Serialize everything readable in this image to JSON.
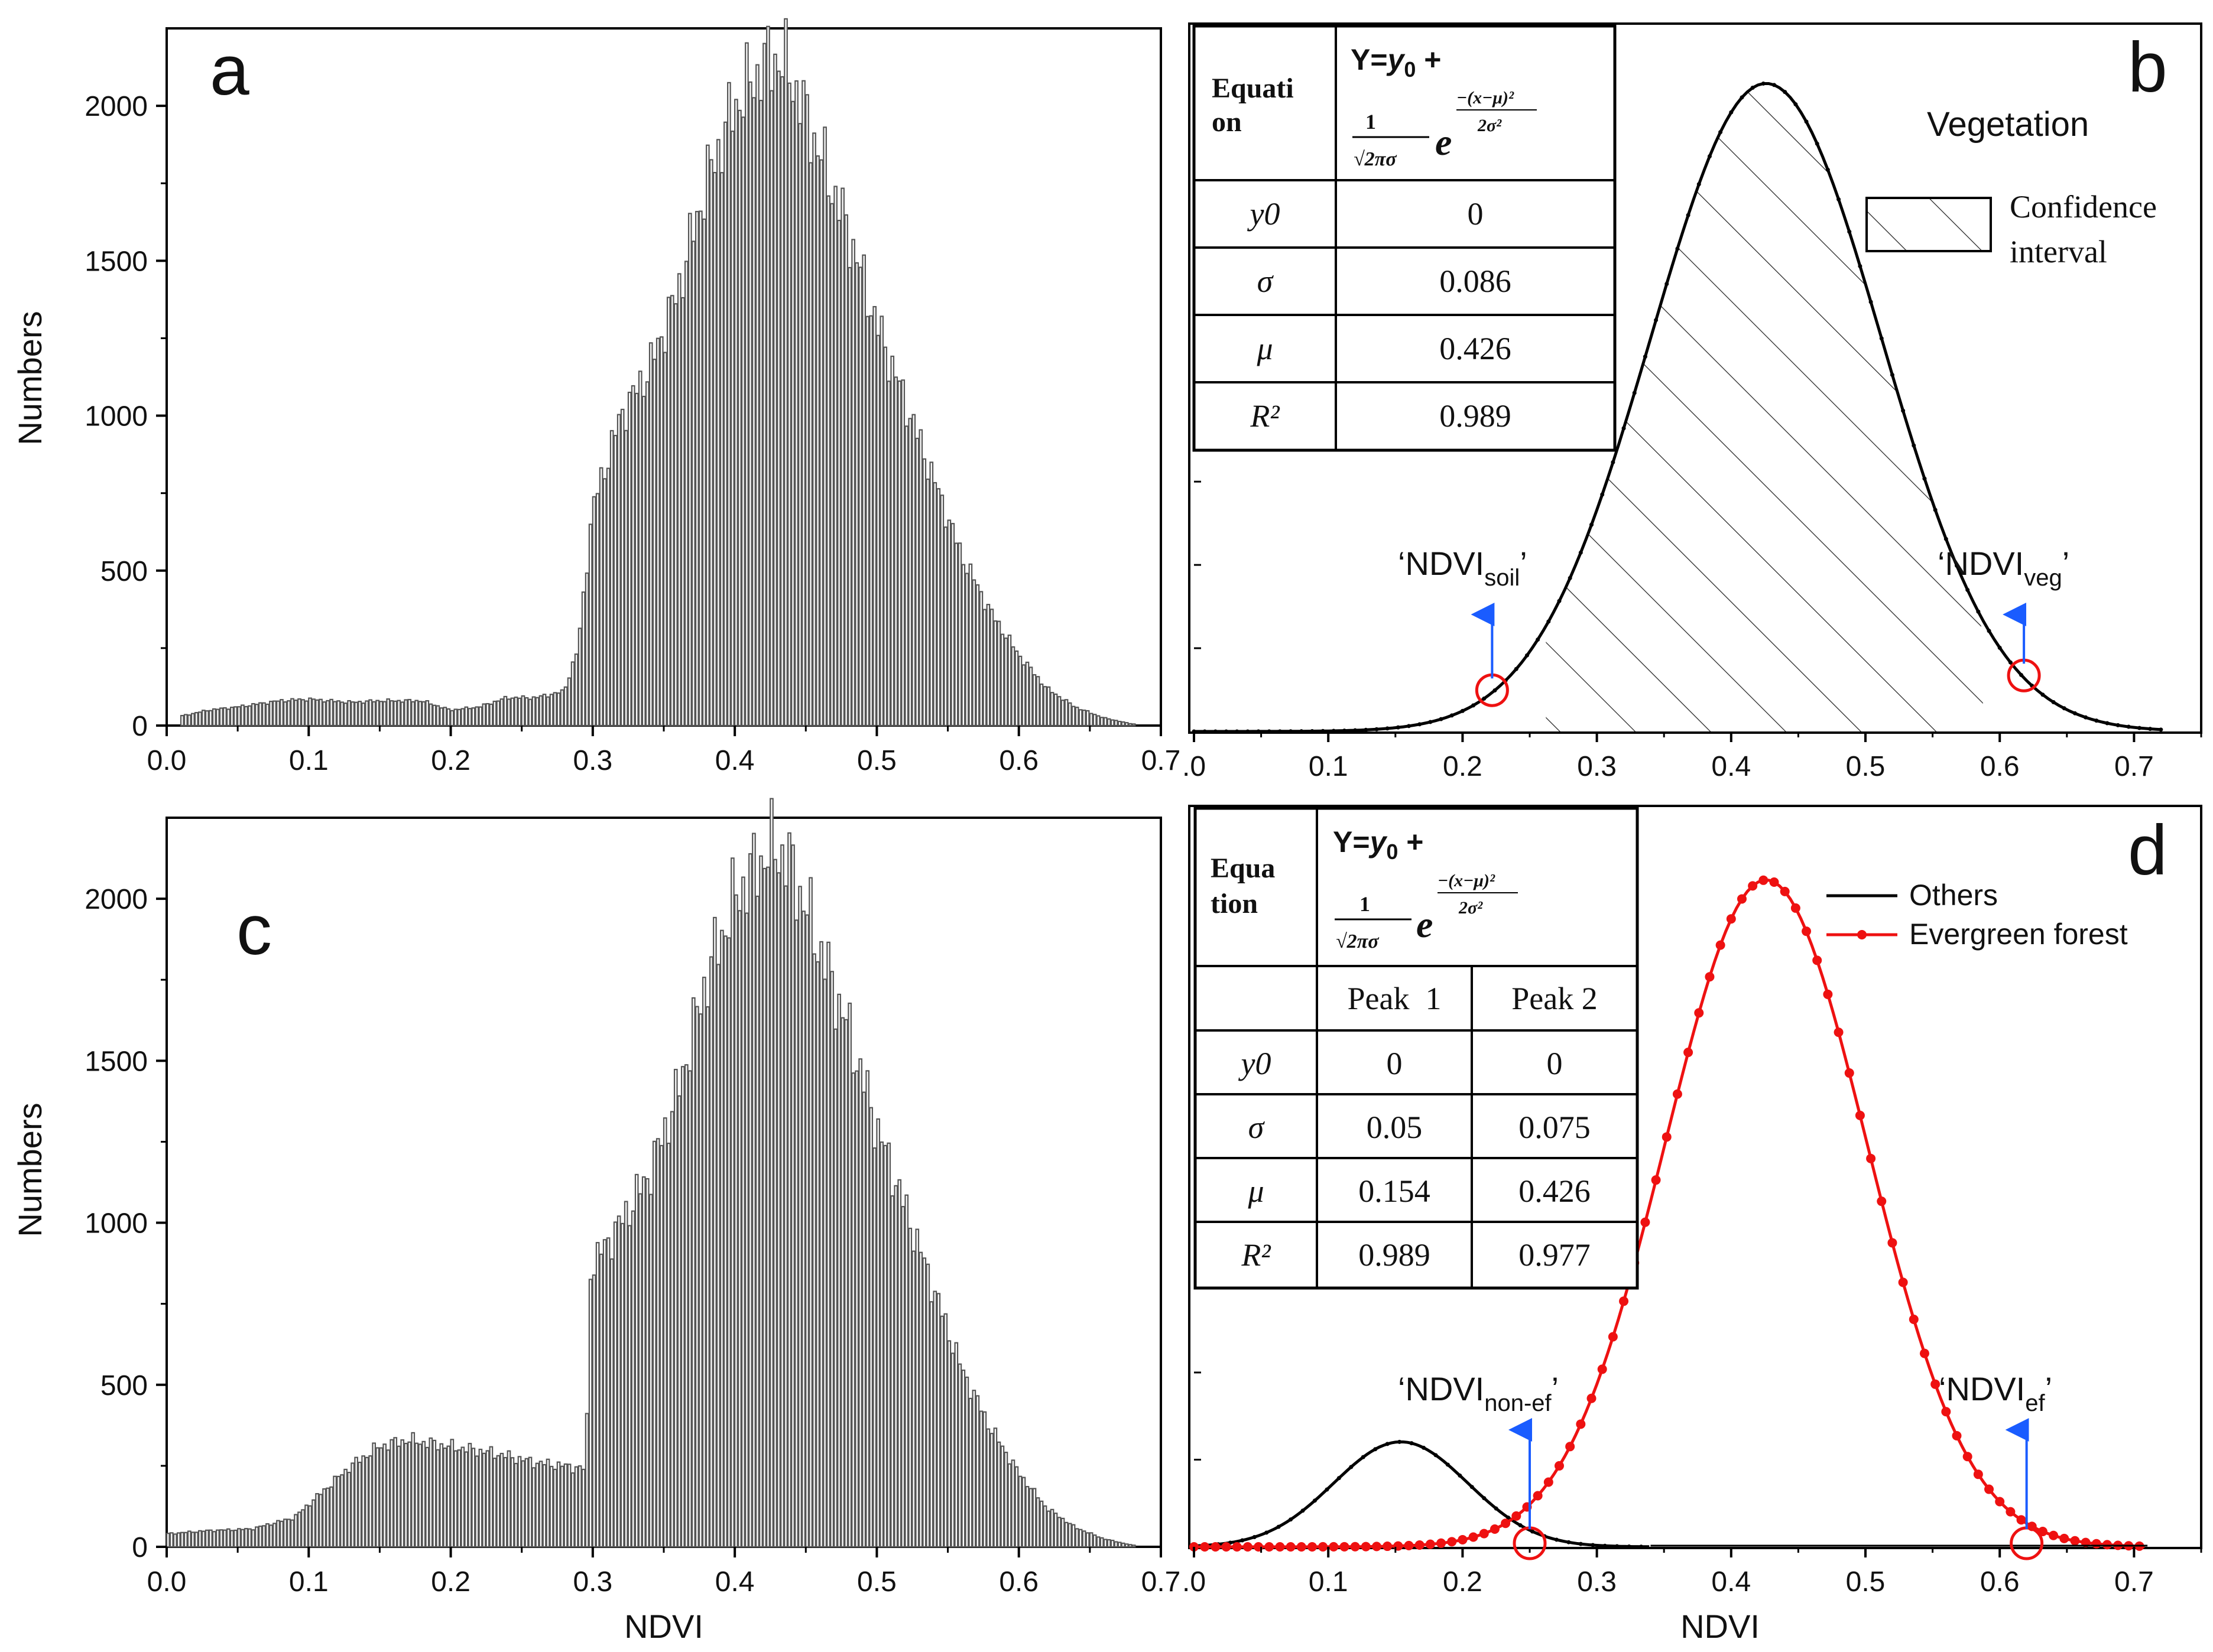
{
  "colors": {
    "axis": "#000000",
    "bar_fill": "#555555",
    "others": "#000000",
    "evergreen": "#ee1111",
    "arrow": "#1a5cff",
    "circle": "#ee1111"
  },
  "panels": {
    "a": {
      "letter": "a"
    },
    "b": {
      "letter": "b",
      "label_vegetation": "Vegetation",
      "legend_confidence_line1": "Confidence",
      "legend_confidence_line2": "interval",
      "annot_soil_main": "‘NDVI",
      "annot_soil_sub": "soil",
      "annot_soil_end": "’",
      "annot_veg_main": "‘NDVI",
      "annot_veg_sub": "veg",
      "annot_veg_end": "’",
      "table": {
        "equation_label": "Equation",
        "equation_text": "Y=y0 + (1/√(2π)σ)·e^(−(x−μ)²/2σ²)",
        "rows": [
          {
            "param": "y0",
            "value": "0"
          },
          {
            "param": "σ",
            "value": "0.086"
          },
          {
            "param": "μ",
            "value": "0.426"
          },
          {
            "param": "R²",
            "value": "0.989"
          }
        ]
      }
    },
    "c": {
      "letter": "c"
    },
    "d": {
      "letter": "d",
      "legend_others": "Others",
      "legend_evergreen": "Evergreen forest",
      "annot_nonef_main": "‘NDVI",
      "annot_nonef_sub": "non-ef",
      "annot_nonef_end": "’",
      "annot_ef_main": "‘NDVI",
      "annot_ef_sub": "ef",
      "annot_ef_end": "’",
      "table": {
        "equation_label": "Equation",
        "equation_text": "Y=y0 + (1/√(2π)σ)·e^(−(x−μ)²/2σ²)",
        "peak1_header": "Peak  1",
        "peak2_header": "Peak 2",
        "rows": [
          {
            "param": "y0",
            "v1": "0",
            "v2": "0"
          },
          {
            "param": "σ",
            "v1": "0.05",
            "v2": "0.075"
          },
          {
            "param": "μ",
            "v1": "0.154",
            "v2": "0.426"
          },
          {
            "param": "R²",
            "v1": "0.989",
            "v2": "0.977"
          }
        ]
      }
    }
  },
  "chart_data": [
    {
      "id": "a",
      "type": "bar",
      "title": "",
      "xlabel": "",
      "ylabel": "Numbers",
      "xlim": [
        0.0,
        0.7
      ],
      "ylim": [
        0,
        2250
      ],
      "xticks": [
        "0.0",
        "0.1",
        "0.2",
        "0.3",
        "0.4",
        "0.5",
        "0.6",
        "0.7"
      ],
      "yticks": [
        "0",
        "500",
        "1000",
        "1500",
        "2000"
      ],
      "bin_width": 0.0025,
      "histogram_profile": {
        "x": [
          0.01,
          0.03,
          0.05,
          0.08,
          0.1,
          0.13,
          0.15,
          0.18,
          0.2,
          0.22,
          0.24,
          0.26,
          0.28,
          0.29,
          0.3,
          0.32,
          0.34,
          0.36,
          0.38,
          0.4,
          0.42,
          0.43,
          0.44,
          0.46,
          0.48,
          0.5,
          0.52,
          0.54,
          0.56,
          0.58,
          0.6,
          0.62,
          0.64,
          0.66,
          0.68
        ],
        "values": [
          30,
          50,
          60,
          80,
          85,
          75,
          80,
          80,
          50,
          60,
          90,
          90,
          110,
          250,
          700,
          1000,
          1150,
          1400,
          1750,
          2000,
          2130,
          2160,
          2100,
          1850,
          1600,
          1300,
          1050,
          800,
          550,
          370,
          230,
          120,
          60,
          25,
          5
        ]
      }
    },
    {
      "id": "b",
      "type": "line",
      "title": "",
      "xlabel": "",
      "ylabel": "",
      "xlim": [
        0.0,
        0.75
      ],
      "ylim": [
        0,
        2250
      ],
      "xticks": [
        ".0",
        "0.1",
        "0.2",
        "0.3",
        "0.4",
        "0.5",
        "0.6",
        "0.7"
      ],
      "series": [
        {
          "name": "Vegetation",
          "model": "gaussian",
          "mu": 0.426,
          "sigma": 0.086,
          "peak": 2060,
          "x_range": [
            0.0,
            0.72
          ]
        }
      ],
      "confidence_interval": [
        0.222,
        0.618
      ],
      "markers": {
        "NDVIsoil": 0.222,
        "NDVIveg": 0.618
      }
    },
    {
      "id": "c",
      "type": "bar",
      "title": "",
      "xlabel": "NDVI",
      "ylabel": "Numbers",
      "xlim": [
        0.0,
        0.7
      ],
      "ylim": [
        0,
        2250
      ],
      "xticks": [
        "0.0",
        "0.1",
        "0.2",
        "0.3",
        "0.4",
        "0.5",
        "0.6",
        "0.7"
      ],
      "yticks": [
        "0",
        "500",
        "1000",
        "1500",
        "2000"
      ],
      "bin_width": 0.0025,
      "histogram_profile": {
        "x": [
          0.0,
          0.03,
          0.06,
          0.09,
          0.11,
          0.13,
          0.15,
          0.17,
          0.2,
          0.23,
          0.26,
          0.28,
          0.296,
          0.297,
          0.32,
          0.34,
          0.36,
          0.38,
          0.4,
          0.42,
          0.43,
          0.44,
          0.46,
          0.48,
          0.5,
          0.52,
          0.54,
          0.56,
          0.58,
          0.6,
          0.62,
          0.64,
          0.66,
          0.68
        ],
        "values": [
          40,
          50,
          55,
          90,
          170,
          250,
          310,
          330,
          310,
          290,
          260,
          250,
          240,
          850,
          1000,
          1150,
          1400,
          1750,
          2000,
          2130,
          2160,
          2100,
          1850,
          1600,
          1300,
          1050,
          800,
          550,
          370,
          230,
          120,
          60,
          25,
          5
        ]
      }
    },
    {
      "id": "d",
      "type": "line",
      "title": "",
      "xlabel": "NDVI",
      "ylabel": "",
      "xlim": [
        0.0,
        0.75
      ],
      "ylim": [
        0,
        2400
      ],
      "xticks": [
        ".0",
        "0.1",
        "0.2",
        "0.3",
        "0.4",
        "0.5",
        "0.6",
        "0.7"
      ],
      "series": [
        {
          "name": "Others",
          "model": "gaussian",
          "mu": 0.154,
          "sigma": 0.05,
          "peak": 340,
          "x_range": [
            0.0,
            0.34
          ]
        },
        {
          "name": "Evergreen forest",
          "model": "gaussian",
          "mu": 0.426,
          "sigma": 0.075,
          "peak": 2160,
          "x_range": [
            0.0,
            0.71
          ]
        }
      ],
      "markers": {
        "NDVInon-ef": 0.25,
        "NDVIef": 0.62
      }
    }
  ]
}
